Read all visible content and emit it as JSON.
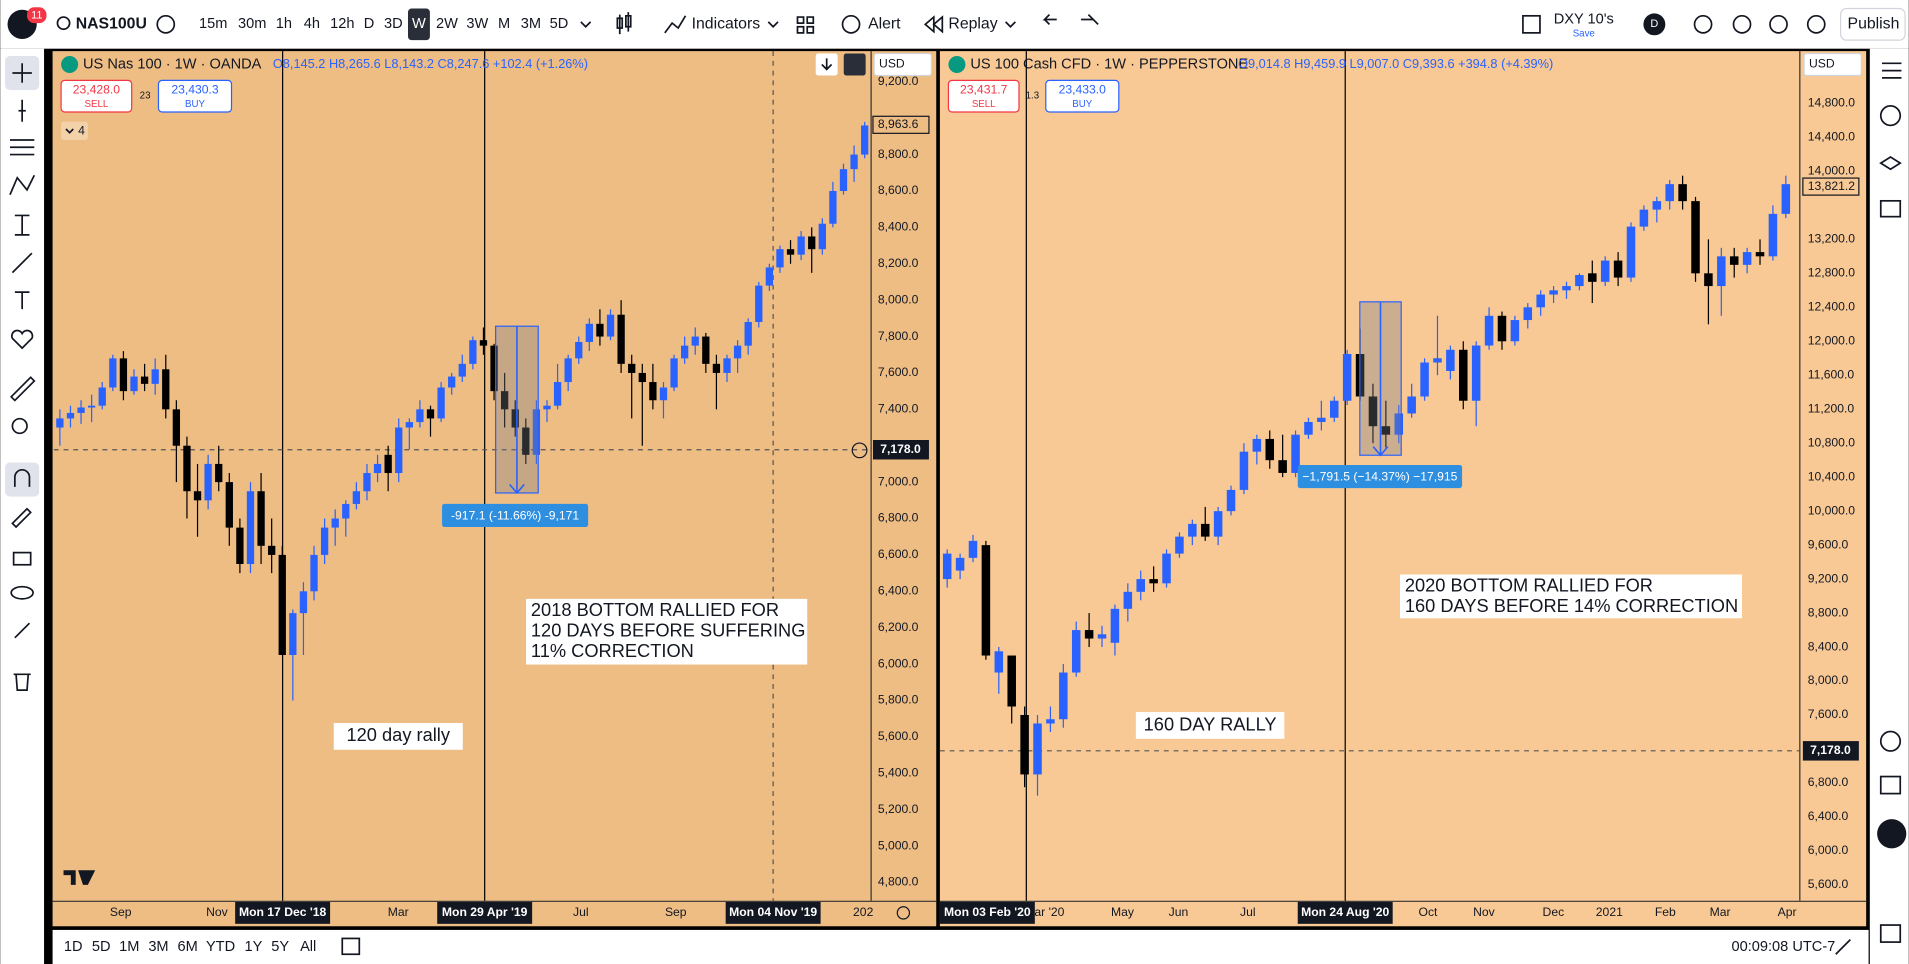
{
  "top_bar": {
    "notification_count": "11",
    "symbol": "NAS100U",
    "intervals": [
      "15m",
      "30m",
      "1h",
      "4h",
      "12h",
      "D",
      "3D",
      "W",
      "2W",
      "3W",
      "M",
      "3M",
      "5D"
    ],
    "active_interval": "W",
    "indicators": "Indicators",
    "alert": "Alert",
    "replay": "Replay",
    "layout_name": "DXY 10's",
    "save": "Save",
    "avatar": "D",
    "publish": "Publish"
  },
  "left_chart": {
    "title": "US Nas 100 · 1W · OANDA",
    "ohlc": "O8,145.2 H8,265.6 L8,143.2 C8,247.6 +102.4 (+1.26%)",
    "sell_price": "23,428.0",
    "sell": "SELL",
    "spread": "23",
    "buy_price": "23,430.3",
    "buy": "BUY",
    "indicator_count": "4",
    "currency": "USD",
    "price_ticks": [
      {
        "value": 9200,
        "label": "9,200.0"
      },
      {
        "value": 8800,
        "label": "8,800.0"
      },
      {
        "value": 8600,
        "label": "8,600.0"
      },
      {
        "value": 8400,
        "label": "8,400.0"
      },
      {
        "value": 8200,
        "label": "8,200.0"
      },
      {
        "value": 8000,
        "label": "8,000.0"
      },
      {
        "value": 7800,
        "label": "7,800.0"
      },
      {
        "value": 7600,
        "label": "7,600.0"
      },
      {
        "value": 7400,
        "label": "7,400.0"
      },
      {
        "value": 7000,
        "label": "7,000.0"
      },
      {
        "value": 6800,
        "label": "6,800.0"
      },
      {
        "value": 6600,
        "label": "6,600.0"
      },
      {
        "value": 6400,
        "label": "6,400.0"
      },
      {
        "value": 6200,
        "label": "6,200.0"
      },
      {
        "value": 6000,
        "label": "6,000.0"
      },
      {
        "value": 5800,
        "label": "5,800.0"
      },
      {
        "value": 5600,
        "label": "5,600.0"
      },
      {
        "value": 5400,
        "label": "5,400.0"
      },
      {
        "value": 5200,
        "label": "5,200.0"
      },
      {
        "value": 5000,
        "label": "5,000.0"
      },
      {
        "value": 4800,
        "label": "4,800.0"
      }
    ],
    "last_price": {
      "value": 8963.6,
      "label": "8,963.6"
    },
    "crosshair_price": {
      "value": 7178,
      "label": "7,178.0"
    },
    "time_labels": [
      "Sep",
      "Nov",
      "Mon 17 Dec '18",
      "Mar",
      "Mon 29 Apr '19",
      "Jul",
      "Sep",
      "Mon 04 Nov '19",
      "202"
    ],
    "measure": "-917.1 (-11.66%) -9,171",
    "notes": [
      "2018 BOTTOM RALLIED FOR",
      "120 DAYS BEFORE SUFFERING",
      "11% CORRECTION"
    ],
    "rally_label": "120 day rally",
    "candles": [
      [
        7300,
        7400,
        7200,
        7350
      ],
      [
        7350,
        7420,
        7300,
        7380
      ],
      [
        7380,
        7450,
        7320,
        7410
      ],
      [
        7410,
        7480,
        7330,
        7420
      ],
      [
        7420,
        7550,
        7400,
        7520
      ],
      [
        7520,
        7700,
        7500,
        7680
      ],
      [
        7680,
        7720,
        7450,
        7500
      ],
      [
        7500,
        7620,
        7480,
        7580
      ],
      [
        7580,
        7650,
        7500,
        7540
      ],
      [
        7540,
        7680,
        7480,
        7620
      ],
      [
        7620,
        7700,
        7350,
        7400
      ],
      [
        7400,
        7450,
        7000,
        7200
      ],
      [
        7200,
        7250,
        6800,
        6950
      ],
      [
        6950,
        7100,
        6700,
        6900
      ],
      [
        6900,
        7150,
        6850,
        7100
      ],
      [
        7100,
        7200,
        6950,
        7000
      ],
      [
        7000,
        7050,
        6650,
        6750
      ],
      [
        6750,
        6800,
        6500,
        6550
      ],
      [
        6550,
        7000,
        6500,
        6950
      ],
      [
        6950,
        7050,
        6550,
        6650
      ],
      [
        6650,
        6800,
        6500,
        6600
      ],
      [
        6600,
        6650,
        6050,
        6050
      ],
      [
        6050,
        6300,
        5800,
        6280
      ],
      [
        6280,
        6450,
        6050,
        6400
      ],
      [
        6400,
        6650,
        6350,
        6600
      ],
      [
        6600,
        6800,
        6550,
        6750
      ],
      [
        6750,
        6850,
        6650,
        6800
      ],
      [
        6800,
        6900,
        6700,
        6880
      ],
      [
        6880,
        7000,
        6850,
        6950
      ],
      [
        6950,
        7100,
        6900,
        7050
      ],
      [
        7050,
        7150,
        7000,
        7100
      ],
      [
        7150,
        7200,
        6950,
        7050
      ],
      [
        7050,
        7350,
        7000,
        7300
      ],
      [
        7300,
        7350,
        7180,
        7330
      ],
      [
        7330,
        7450,
        7300,
        7400
      ],
      [
        7400,
        7420,
        7250,
        7350
      ],
      [
        7350,
        7550,
        7330,
        7520
      ],
      [
        7520,
        7600,
        7480,
        7580
      ],
      [
        7580,
        7700,
        7550,
        7650
      ],
      [
        7650,
        7800,
        7620,
        7780
      ],
      [
        7780,
        7850,
        7700,
        7750
      ],
      [
        7750,
        7760,
        7450,
        7500
      ],
      [
        7500,
        7600,
        7300,
        7400
      ],
      [
        7400,
        7450,
        7250,
        7300
      ],
      [
        7300,
        7350,
        7100,
        7150
      ],
      [
        7150,
        7450,
        7100,
        7400
      ],
      [
        7400,
        7450,
        7330,
        7420
      ],
      [
        7420,
        7650,
        7400,
        7550
      ],
      [
        7550,
        7700,
        7500,
        7680
      ],
      [
        7680,
        7800,
        7650,
        7770
      ],
      [
        7770,
        7900,
        7720,
        7870
      ],
      [
        7870,
        7950,
        7750,
        7800
      ],
      [
        7800,
        7950,
        7780,
        7920
      ],
      [
        7920,
        8000,
        7600,
        7650
      ],
      [
        7650,
        7700,
        7350,
        7600
      ],
      [
        7600,
        7650,
        7200,
        7550
      ],
      [
        7550,
        7650,
        7400,
        7450
      ],
      [
        7450,
        7550,
        7350,
        7520
      ],
      [
        7520,
        7700,
        7500,
        7680
      ],
      [
        7680,
        7800,
        7650,
        7750
      ],
      [
        7750,
        7850,
        7700,
        7800
      ],
      [
        7800,
        7820,
        7600,
        7650
      ],
      [
        7650,
        7700,
        7400,
        7600
      ],
      [
        7600,
        7700,
        7550,
        7680
      ],
      [
        7680,
        7780,
        7600,
        7750
      ],
      [
        7750,
        7900,
        7700,
        7880
      ],
      [
        7880,
        8100,
        7850,
        8080
      ],
      [
        8080,
        8200,
        8050,
        8180
      ],
      [
        8180,
        8300,
        8150,
        8280
      ],
      [
        8280,
        8330,
        8200,
        8250
      ],
      [
        8250,
        8380,
        8220,
        8350
      ],
      [
        8350,
        8400,
        8150,
        8280
      ],
      [
        8280,
        8450,
        8250,
        8420
      ],
      [
        8420,
        8650,
        8400,
        8600
      ],
      [
        8600,
        8750,
        8580,
        8720
      ],
      [
        8720,
        8850,
        8650,
        8800
      ],
      [
        8800,
        8980,
        8780,
        8960
      ]
    ]
  },
  "right_chart": {
    "title": "US 100 Cash CFD · 1W · PEPPERSTONE",
    "ohlc": "O9,014.8 H9,459.9 L9,007.0 C9,393.6 +394.8 (+4.39%)",
    "sell_price": "23,431.7",
    "sell": "SELL",
    "spread": "1.3",
    "buy_price": "23,433.0",
    "buy": "BUY",
    "currency": "USD",
    "price_ticks": [
      {
        "value": 14800,
        "label": "14,800.0"
      },
      {
        "value": 14400,
        "label": "14,400.0"
      },
      {
        "value": 14000,
        "label": "14,000.0"
      },
      {
        "value": 13200,
        "label": "13,200.0"
      },
      {
        "value": 12800,
        "label": "12,800.0"
      },
      {
        "value": 12400,
        "label": "12,400.0"
      },
      {
        "value": 12000,
        "label": "12,000.0"
      },
      {
        "value": 11600,
        "label": "11,600.0"
      },
      {
        "value": 11200,
        "label": "11,200.0"
      },
      {
        "value": 10800,
        "label": "10,800.0"
      },
      {
        "value": 10400,
        "label": "10,400.0"
      },
      {
        "value": 10000,
        "label": "10,000.0"
      },
      {
        "value": 9600,
        "label": "9,600.0"
      },
      {
        "value": 9200,
        "label": "9,200.0"
      },
      {
        "value": 8800,
        "label": "8,800.0"
      },
      {
        "value": 8400,
        "label": "8,400.0"
      },
      {
        "value": 8000,
        "label": "8,000.0"
      },
      {
        "value": 7600,
        "label": "7,600.0"
      },
      {
        "value": 6800,
        "label": "6,800.0"
      },
      {
        "value": 6400,
        "label": "6,400.0"
      },
      {
        "value": 6000,
        "label": "6,000.0"
      },
      {
        "value": 5600,
        "label": "5,600.0"
      }
    ],
    "last_price": {
      "value": 13821.2,
      "label": "13,821.2"
    },
    "crosshair_price": {
      "value": 7178,
      "label": "7,178.0"
    },
    "time_labels": [
      "Mon 03 Feb '20",
      "ar '20",
      "May",
      "Jun",
      "Jul",
      "Mon 24 Aug '20",
      "Oct",
      "Nov",
      "Dec",
      "2021",
      "Feb",
      "Mar",
      "Apr"
    ],
    "measure": "−1,791.5 (−14.37%) −17,915",
    "notes": [
      "2020 BOTTOM RALLIED FOR",
      "160 DAYS BEFORE 14% CORRECTION"
    ],
    "rally_label": "160 DAY RALLY",
    "candles": [
      [
        9200,
        9550,
        9100,
        9500
      ],
      [
        9300,
        9500,
        9200,
        9450
      ],
      [
        9450,
        9720,
        9400,
        9650
      ],
      [
        9600,
        9650,
        8250,
        8300
      ],
      [
        8100,
        8400,
        7850,
        8350
      ],
      [
        8300,
        8300,
        7500,
        7700
      ],
      [
        7600,
        7700,
        6750,
        6900
      ],
      [
        6900,
        7600,
        6650,
        7500
      ],
      [
        7500,
        7700,
        7400,
        7550
      ],
      [
        7550,
        8200,
        7450,
        8100
      ],
      [
        8100,
        8700,
        8050,
        8600
      ],
      [
        8600,
        8800,
        8400,
        8500
      ],
      [
        8500,
        8650,
        8400,
        8550
      ],
      [
        8450,
        8900,
        8300,
        8850
      ],
      [
        8850,
        9150,
        8700,
        9050
      ],
      [
        9050,
        9300,
        8950,
        9200
      ],
      [
        9200,
        9350,
        9050,
        9150
      ],
      [
        9150,
        9550,
        9100,
        9500
      ],
      [
        9500,
        9750,
        9450,
        9700
      ],
      [
        9700,
        9900,
        9600,
        9850
      ],
      [
        9850,
        10050,
        9650,
        9700
      ],
      [
        9700,
        10050,
        9600,
        10000
      ],
      [
        10000,
        10300,
        9950,
        10250
      ],
      [
        10250,
        10800,
        10200,
        10700
      ],
      [
        10700,
        10900,
        10550,
        10850
      ],
      [
        10850,
        10950,
        10500,
        10600
      ],
      [
        10600,
        10900,
        10400,
        10450
      ],
      [
        10450,
        10950,
        10400,
        10900
      ],
      [
        10900,
        11100,
        10850,
        11050
      ],
      [
        11050,
        11300,
        10950,
        11100
      ],
      [
        11100,
        11350,
        11050,
        11300
      ],
      [
        11300,
        11900,
        11250,
        11850
      ],
      [
        11850,
        12150,
        11300,
        11350
      ],
      [
        11350,
        11500,
        10800,
        11000
      ],
      [
        11000,
        11300,
        10750,
        10900
      ],
      [
        10900,
        11250,
        10800,
        11150
      ],
      [
        11150,
        11500,
        11100,
        11350
      ],
      [
        11350,
        11800,
        11300,
        11750
      ],
      [
        11750,
        12300,
        11600,
        11800
      ],
      [
        11650,
        11950,
        11550,
        11900
      ],
      [
        11900,
        12000,
        11200,
        11300
      ],
      [
        11300,
        12000,
        11000,
        11950
      ],
      [
        11950,
        12400,
        11900,
        12300
      ],
      [
        12300,
        12350,
        11900,
        12000
      ],
      [
        12000,
        12300,
        11950,
        12250
      ],
      [
        12250,
        12450,
        12150,
        12400
      ],
      [
        12400,
        12600,
        12300,
        12550
      ],
      [
        12550,
        12650,
        12450,
        12600
      ],
      [
        12600,
        12700,
        12500,
        12650
      ],
      [
        12650,
        12800,
        12600,
        12780
      ],
      [
        12800,
        12950,
        12450,
        12700
      ],
      [
        12700,
        13000,
        12650,
        12950
      ],
      [
        12950,
        13050,
        12650,
        12750
      ],
      [
        12750,
        13400,
        12700,
        13350
      ],
      [
        13350,
        13600,
        13300,
        13550
      ],
      [
        13550,
        13700,
        13400,
        13650
      ],
      [
        13650,
        13900,
        13550,
        13850
      ],
      [
        13850,
        13950,
        13550,
        13650
      ],
      [
        13650,
        13700,
        12700,
        12800
      ],
      [
        12800,
        13200,
        12200,
        12650
      ],
      [
        12650,
        13100,
        12300,
        13000
      ],
      [
        13000,
        13100,
        12750,
        12900
      ],
      [
        12900,
        13100,
        12800,
        13050
      ],
      [
        13050,
        13200,
        12900,
        13000
      ],
      [
        13000,
        13600,
        12950,
        13500
      ],
      [
        13500,
        13950,
        13450,
        13850
      ]
    ]
  },
  "bottom_bar": {
    "ranges": [
      "1D",
      "5D",
      "1M",
      "3M",
      "6M",
      "YTD",
      "1Y",
      "5Y",
      "All"
    ],
    "clock": "00:09:08 UTC-7"
  }
}
